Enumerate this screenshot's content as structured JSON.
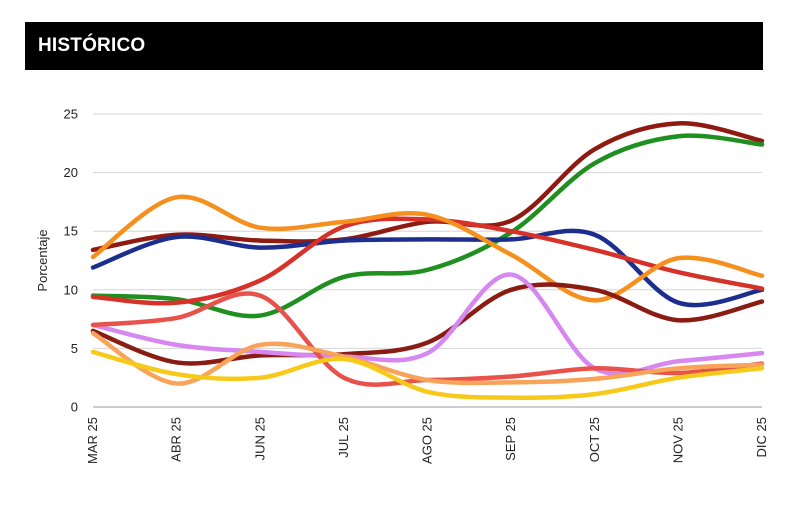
{
  "header": {
    "title": "HISTÓRICO"
  },
  "chart_data": {
    "type": "line",
    "title": "",
    "xlabel": "",
    "ylabel": "Porcentaje",
    "ylim": [
      0,
      25
    ],
    "yticks": [
      0,
      5,
      10,
      15,
      20,
      25
    ],
    "grid": true,
    "categories": [
      "MAR 25",
      "ABR 25",
      "JUN 25",
      "JUL 25",
      "AGO 25",
      "SEP 25",
      "OCT 25",
      "NOV 25",
      "DIC 25"
    ],
    "series": [
      {
        "name": "Serie rojo oscuro",
        "color": "#8e1a12",
        "values": [
          13.4,
          14.7,
          14.2,
          14.3,
          15.8,
          15.9,
          22.0,
          24.2,
          22.7
        ]
      },
      {
        "name": "Serie verde",
        "color": "#1f8f1f",
        "values": [
          9.5,
          9.2,
          7.8,
          11.1,
          11.7,
          14.9,
          20.8,
          23.1,
          22.4
        ]
      },
      {
        "name": "Serie azul",
        "color": "#1c2f8f",
        "values": [
          11.9,
          14.5,
          13.6,
          14.2,
          14.3,
          14.3,
          14.7,
          8.9,
          10.0
        ]
      },
      {
        "name": "Serie rojo",
        "color": "#d6322a",
        "values": [
          9.4,
          8.9,
          10.8,
          15.4,
          16.0,
          15.0,
          13.4,
          11.5,
          10.1
        ]
      },
      {
        "name": "Serie naranja",
        "color": "#f5901e",
        "values": [
          12.8,
          17.9,
          15.3,
          15.8,
          16.4,
          13.0,
          9.1,
          12.7,
          11.2
        ]
      },
      {
        "name": "Serie granate",
        "color": "#8a1c14",
        "values": [
          6.5,
          3.8,
          4.4,
          4.5,
          5.5,
          10.0,
          10.0,
          7.4,
          9.0
        ]
      },
      {
        "name": "Serie violeta",
        "color": "#d687f0",
        "values": [
          7.0,
          5.3,
          4.7,
          4.3,
          4.6,
          11.3,
          3.3,
          3.9,
          4.6
        ]
      },
      {
        "name": "Serie coral",
        "color": "#e8524a",
        "values": [
          7.0,
          7.6,
          9.5,
          2.5,
          2.3,
          2.6,
          3.3,
          2.9,
          3.7
        ]
      },
      {
        "name": "Serie naranja claro",
        "color": "#f7a35a",
        "values": [
          6.3,
          2.0,
          5.3,
          4.3,
          2.3,
          2.1,
          2.4,
          3.3,
          3.6
        ]
      },
      {
        "name": "Serie amarillo",
        "color": "#f7c91a",
        "values": [
          4.7,
          2.8,
          2.5,
          4.1,
          1.3,
          0.8,
          1.1,
          2.5,
          3.3
        ]
      }
    ]
  }
}
